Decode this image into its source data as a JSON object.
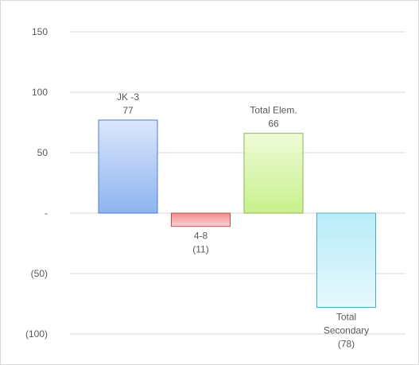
{
  "chart_data": {
    "type": "bar",
    "title": "",
    "xlabel": "",
    "ylabel": "",
    "ylim": [
      -100,
      150
    ],
    "y_ticks": [
      {
        "value": 150,
        "label": "150"
      },
      {
        "value": 100,
        "label": "100"
      },
      {
        "value": 50,
        "label": "50"
      },
      {
        "value": 0,
        "label": "-"
      },
      {
        "value": -50,
        "label": "(50)"
      },
      {
        "value": -100,
        "label": "(100)"
      }
    ],
    "grid": true,
    "legend": "none",
    "bars": [
      {
        "category_lines": [
          "JK -3"
        ],
        "value": 77,
        "value_label": "77",
        "color": "#8eb4f0",
        "color_top": "#dbe6fb",
        "border": "#4a7ec9"
      },
      {
        "category_lines": [
          "4-8"
        ],
        "value": -11,
        "value_label": "(11)",
        "color": "#f08c8c",
        "color_top": "#fbd4d4",
        "border": "#c0504d"
      },
      {
        "category_lines": [
          "Total Elem."
        ],
        "value": 66,
        "value_label": "66",
        "color": "#c8f08c",
        "color_top": "#eefbd8",
        "border": "#8fba4e"
      },
      {
        "category_lines": [
          "Total",
          "Secondary"
        ],
        "value": -78,
        "value_label": "(78)",
        "color": "#b8ecf8",
        "color_top": "#e6f8fd",
        "border": "#4bacc6"
      }
    ]
  }
}
